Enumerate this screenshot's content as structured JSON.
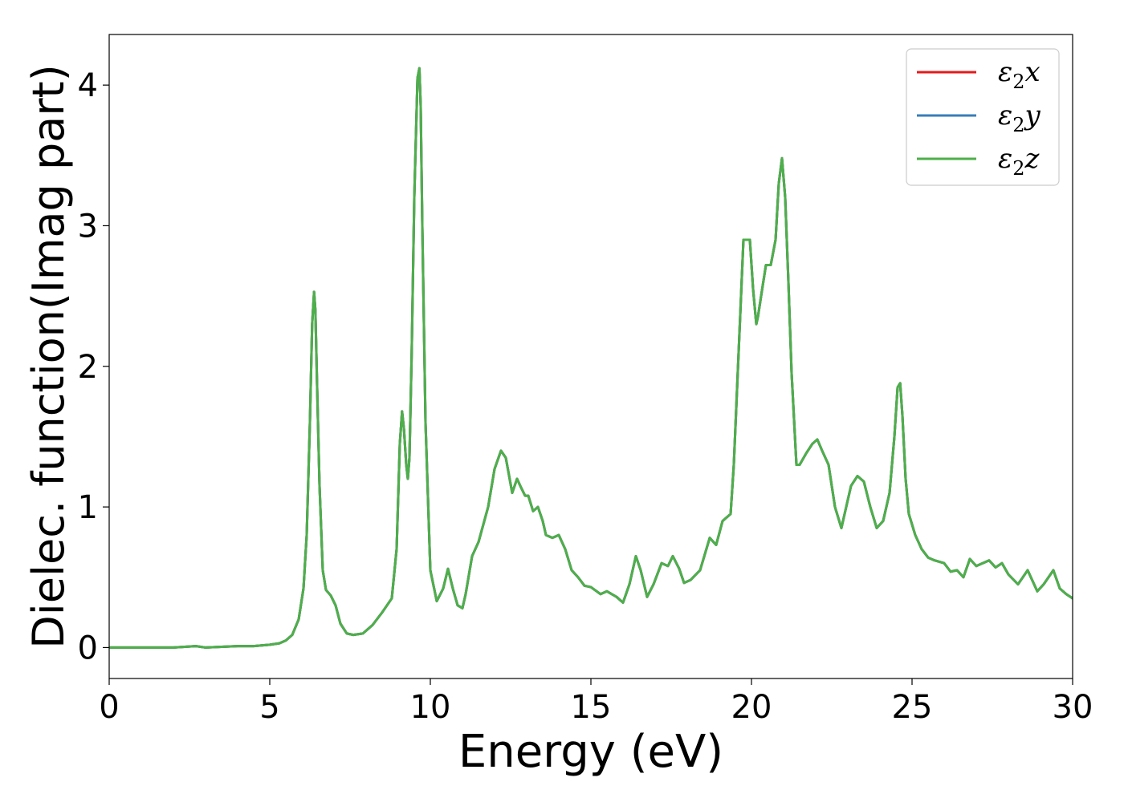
{
  "chart_data": {
    "type": "line",
    "title": "",
    "xlabel": "Energy (eV)",
    "ylabel": "Dielec. function(Imag part)",
    "xlim": [
      0,
      30
    ],
    "ylim": [
      -0.22,
      4.36
    ],
    "xticks": [
      0,
      5,
      10,
      15,
      20,
      25,
      30
    ],
    "xtick_labels": [
      "0",
      "5",
      "10",
      "15",
      "20",
      "25",
      "30"
    ],
    "yticks": [
      0,
      1,
      2,
      3,
      4
    ],
    "ytick_labels": [
      "0",
      "1",
      "2",
      "3",
      "4"
    ],
    "grid": false,
    "legend_position": "top-right",
    "x": [
      0.0,
      0.5,
      1.0,
      2.0,
      2.7,
      3.0,
      4.0,
      4.5,
      5.0,
      5.3,
      5.5,
      5.7,
      5.9,
      6.05,
      6.15,
      6.25,
      6.32,
      6.38,
      6.42,
      6.47,
      6.55,
      6.65,
      6.75,
      6.9,
      7.05,
      7.2,
      7.4,
      7.6,
      7.9,
      8.2,
      8.5,
      8.8,
      8.95,
      9.05,
      9.12,
      9.18,
      9.25,
      9.3,
      9.35,
      9.42,
      9.5,
      9.6,
      9.66,
      9.7,
      9.75,
      9.85,
      10.0,
      10.2,
      10.4,
      10.55,
      10.7,
      10.85,
      11.0,
      11.1,
      11.3,
      11.5,
      11.8,
      12.0,
      12.2,
      12.35,
      12.55,
      12.7,
      12.8,
      12.95,
      13.05,
      13.2,
      13.35,
      13.5,
      13.6,
      13.8,
      14.0,
      14.2,
      14.4,
      14.6,
      14.8,
      15.0,
      15.3,
      15.5,
      15.8,
      16.0,
      16.2,
      16.4,
      16.55,
      16.75,
      16.95,
      17.2,
      17.4,
      17.55,
      17.75,
      17.9,
      18.1,
      18.4,
      18.7,
      18.9,
      19.1,
      19.35,
      19.45,
      19.6,
      19.75,
      19.95,
      20.05,
      20.15,
      20.2,
      20.3,
      20.45,
      20.6,
      20.75,
      20.85,
      20.95,
      21.05,
      21.15,
      21.25,
      21.4,
      21.5,
      21.7,
      21.9,
      22.05,
      22.2,
      22.4,
      22.6,
      22.8,
      23.0,
      23.1,
      23.3,
      23.5,
      23.7,
      23.9,
      24.1,
      24.3,
      24.45,
      24.55,
      24.63,
      24.7,
      24.8,
      24.9,
      25.1,
      25.3,
      25.5,
      25.7,
      26.0,
      26.2,
      26.4,
      26.6,
      26.8,
      27.0,
      27.2,
      27.4,
      27.6,
      27.8,
      28.0,
      28.3,
      28.6,
      28.9,
      29.1,
      29.4,
      29.6,
      29.8,
      30.0
    ],
    "series": [
      {
        "name": "ε₂x",
        "color": "#e41a1c",
        "values": [
          0.0,
          0.0,
          0.0,
          0.0,
          0.01,
          0.0,
          0.01,
          0.01,
          0.02,
          0.03,
          0.05,
          0.09,
          0.2,
          0.42,
          0.8,
          1.6,
          2.3,
          2.53,
          2.4,
          1.9,
          1.15,
          0.55,
          0.41,
          0.37,
          0.3,
          0.17,
          0.1,
          0.09,
          0.1,
          0.16,
          0.25,
          0.35,
          0.7,
          1.45,
          1.68,
          1.55,
          1.3,
          1.2,
          1.35,
          2.1,
          3.2,
          4.05,
          4.12,
          3.85,
          3.0,
          1.6,
          0.55,
          0.33,
          0.42,
          0.56,
          0.42,
          0.3,
          0.28,
          0.38,
          0.65,
          0.75,
          1.0,
          1.27,
          1.4,
          1.35,
          1.1,
          1.2,
          1.15,
          1.08,
          1.08,
          0.97,
          1.0,
          0.9,
          0.8,
          0.78,
          0.8,
          0.7,
          0.55,
          0.5,
          0.44,
          0.43,
          0.38,
          0.4,
          0.36,
          0.32,
          0.45,
          0.65,
          0.55,
          0.36,
          0.45,
          0.6,
          0.58,
          0.65,
          0.56,
          0.46,
          0.48,
          0.55,
          0.78,
          0.73,
          0.9,
          0.95,
          1.3,
          2.1,
          2.9,
          2.9,
          2.55,
          2.3,
          2.35,
          2.5,
          2.72,
          2.72,
          2.9,
          3.3,
          3.48,
          3.2,
          2.6,
          1.95,
          1.3,
          1.3,
          1.38,
          1.45,
          1.48,
          1.4,
          1.3,
          1.0,
          0.85,
          1.05,
          1.15,
          1.22,
          1.18,
          1.0,
          0.85,
          0.9,
          1.1,
          1.5,
          1.85,
          1.88,
          1.65,
          1.2,
          0.95,
          0.8,
          0.7,
          0.64,
          0.62,
          0.6,
          0.54,
          0.55,
          0.5,
          0.63,
          0.58,
          0.6,
          0.62,
          0.57,
          0.6,
          0.52,
          0.45,
          0.55,
          0.4,
          0.45,
          0.55,
          0.42,
          0.38,
          0.35
        ]
      },
      {
        "name": "ε₂y",
        "color": "#377eb8",
        "values": [
          0.0,
          0.0,
          0.0,
          0.0,
          0.01,
          0.0,
          0.01,
          0.01,
          0.02,
          0.03,
          0.05,
          0.09,
          0.2,
          0.42,
          0.8,
          1.6,
          2.3,
          2.53,
          2.4,
          1.9,
          1.15,
          0.55,
          0.41,
          0.37,
          0.3,
          0.17,
          0.1,
          0.09,
          0.1,
          0.16,
          0.25,
          0.35,
          0.7,
          1.45,
          1.68,
          1.55,
          1.3,
          1.2,
          1.35,
          2.1,
          3.2,
          4.05,
          4.12,
          3.85,
          3.0,
          1.6,
          0.55,
          0.33,
          0.42,
          0.56,
          0.42,
          0.3,
          0.28,
          0.38,
          0.65,
          0.75,
          1.0,
          1.27,
          1.4,
          1.35,
          1.1,
          1.2,
          1.15,
          1.08,
          1.08,
          0.97,
          1.0,
          0.9,
          0.8,
          0.78,
          0.8,
          0.7,
          0.55,
          0.5,
          0.44,
          0.43,
          0.38,
          0.4,
          0.36,
          0.32,
          0.45,
          0.65,
          0.55,
          0.36,
          0.45,
          0.6,
          0.58,
          0.65,
          0.56,
          0.46,
          0.48,
          0.55,
          0.78,
          0.73,
          0.9,
          0.95,
          1.3,
          2.1,
          2.9,
          2.9,
          2.55,
          2.3,
          2.35,
          2.5,
          2.72,
          2.72,
          2.9,
          3.3,
          3.48,
          3.2,
          2.6,
          1.95,
          1.3,
          1.3,
          1.38,
          1.45,
          1.48,
          1.4,
          1.3,
          1.0,
          0.85,
          1.05,
          1.15,
          1.22,
          1.18,
          1.0,
          0.85,
          0.9,
          1.1,
          1.5,
          1.85,
          1.88,
          1.65,
          1.2,
          0.95,
          0.8,
          0.7,
          0.64,
          0.62,
          0.6,
          0.54,
          0.55,
          0.5,
          0.63,
          0.58,
          0.6,
          0.62,
          0.57,
          0.6,
          0.52,
          0.45,
          0.55,
          0.4,
          0.45,
          0.55,
          0.42,
          0.38,
          0.35
        ]
      },
      {
        "name": "ε₂z",
        "color": "#4daf4a",
        "values": [
          0.0,
          0.0,
          0.0,
          0.0,
          0.01,
          0.0,
          0.01,
          0.01,
          0.02,
          0.03,
          0.05,
          0.09,
          0.2,
          0.42,
          0.8,
          1.6,
          2.3,
          2.53,
          2.4,
          1.9,
          1.15,
          0.55,
          0.41,
          0.37,
          0.3,
          0.17,
          0.1,
          0.09,
          0.1,
          0.16,
          0.25,
          0.35,
          0.7,
          1.45,
          1.68,
          1.55,
          1.3,
          1.2,
          1.35,
          2.1,
          3.2,
          4.05,
          4.12,
          3.85,
          3.0,
          1.6,
          0.55,
          0.33,
          0.42,
          0.56,
          0.42,
          0.3,
          0.28,
          0.38,
          0.65,
          0.75,
          1.0,
          1.27,
          1.4,
          1.35,
          1.1,
          1.2,
          1.15,
          1.08,
          1.08,
          0.97,
          1.0,
          0.9,
          0.8,
          0.78,
          0.8,
          0.7,
          0.55,
          0.5,
          0.44,
          0.43,
          0.38,
          0.4,
          0.36,
          0.32,
          0.45,
          0.65,
          0.55,
          0.36,
          0.45,
          0.6,
          0.58,
          0.65,
          0.56,
          0.46,
          0.48,
          0.55,
          0.78,
          0.73,
          0.9,
          0.95,
          1.3,
          2.1,
          2.9,
          2.9,
          2.55,
          2.3,
          2.35,
          2.5,
          2.72,
          2.72,
          2.9,
          3.3,
          3.48,
          3.2,
          2.6,
          1.95,
          1.3,
          1.3,
          1.38,
          1.45,
          1.48,
          1.4,
          1.3,
          1.0,
          0.85,
          1.05,
          1.15,
          1.22,
          1.18,
          1.0,
          0.85,
          0.9,
          1.1,
          1.5,
          1.85,
          1.88,
          1.65,
          1.2,
          0.95,
          0.8,
          0.7,
          0.64,
          0.62,
          0.6,
          0.54,
          0.55,
          0.5,
          0.63,
          0.58,
          0.6,
          0.62,
          0.57,
          0.6,
          0.52,
          0.45,
          0.55,
          0.4,
          0.45,
          0.55,
          0.42,
          0.38,
          0.35
        ]
      }
    ],
    "legend": [
      {
        "base": "ε",
        "sub": "2",
        "var": "x"
      },
      {
        "base": "ε",
        "sub": "2",
        "var": "y"
      },
      {
        "base": "ε",
        "sub": "2",
        "var": "z"
      }
    ]
  }
}
